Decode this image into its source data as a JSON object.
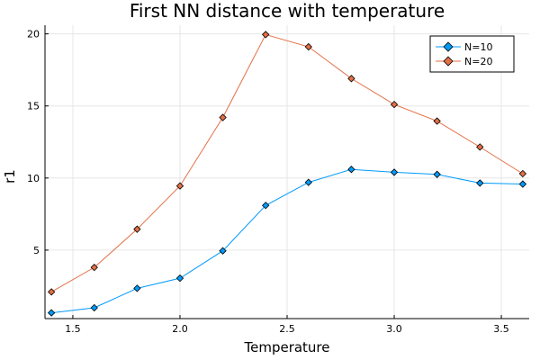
{
  "chart_data": {
    "type": "line",
    "title": "First NN distance with temperature",
    "xlabel": "Temperature",
    "ylabel": "r1",
    "xlim": [
      1.37,
      3.63
    ],
    "ylim": [
      0.25,
      20.6
    ],
    "xticks": [
      1.5,
      2.0,
      2.5,
      3.0,
      3.5
    ],
    "xtick_labels": [
      "1.5",
      "2.0",
      "2.5",
      "3.0",
      "3.5"
    ],
    "yticks": [
      5,
      10,
      15,
      20
    ],
    "ytick_labels": [
      "5",
      "10",
      "15",
      "20"
    ],
    "grid": true,
    "legend_position": "top-right",
    "x": [
      1.4,
      1.6,
      1.8,
      2.0,
      2.2,
      2.4,
      2.6,
      2.8,
      3.0,
      3.2,
      3.4,
      3.6
    ],
    "series": [
      {
        "name": "N=10",
        "color": "#009AFA",
        "values": [
          0.65,
          1.0,
          2.35,
          3.05,
          4.95,
          8.1,
          9.7,
          10.6,
          10.4,
          10.25,
          9.65,
          9.58
        ]
      },
      {
        "name": "N=20",
        "color": "#E26F46",
        "values": [
          2.1,
          3.8,
          6.45,
          9.45,
          14.2,
          19.95,
          19.1,
          16.9,
          15.1,
          13.95,
          12.15,
          10.3
        ]
      }
    ]
  }
}
